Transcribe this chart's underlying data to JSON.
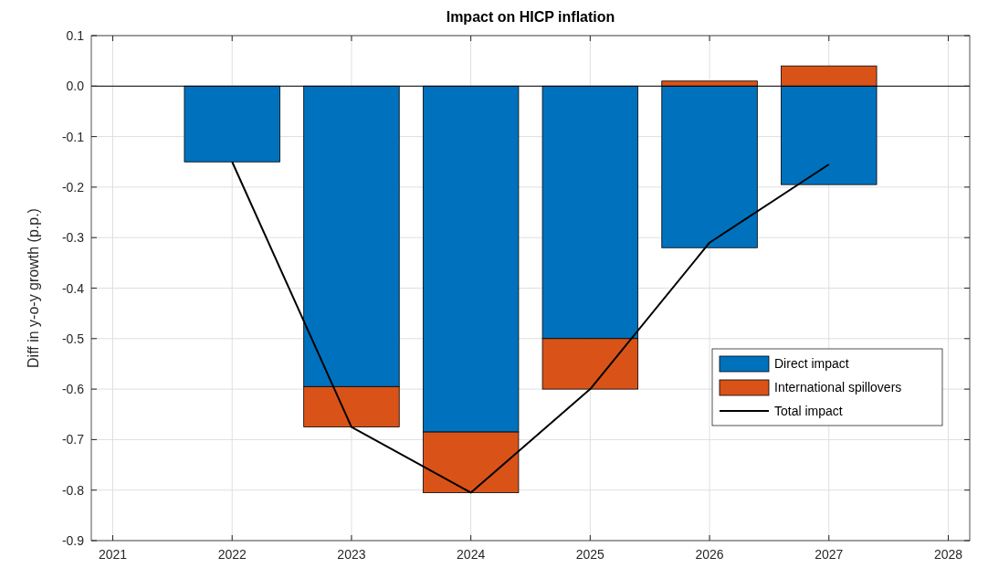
{
  "chart_data": {
    "type": "bar",
    "title": "Impact on HICP inflation",
    "ylabel": "Diff in y-o-y growth (p.p.)",
    "x": [
      2022,
      2023,
      2024,
      2025,
      2026,
      2027
    ],
    "stacked": true,
    "series": [
      {
        "name": "Direct impact",
        "color": "#0072bd",
        "values": [
          -0.15,
          -0.595,
          -0.685,
          -0.5,
          -0.32,
          -0.195
        ]
      },
      {
        "name": "International spillovers",
        "color": "#d95319",
        "values": [
          0,
          -0.08,
          -0.12,
          -0.1,
          0.01,
          0.04
        ]
      },
      {
        "name": "Total impact",
        "type": "line",
        "color": "#000000",
        "values": [
          -0.15,
          -0.675,
          -0.805,
          -0.6,
          -0.31,
          -0.155
        ]
      }
    ],
    "xlim": [
      2020.82,
      2028.18
    ],
    "xticks": [
      2021,
      2022,
      2023,
      2024,
      2025,
      2026,
      2027,
      2028
    ],
    "ylim": [
      -0.9,
      0.1
    ],
    "yticks": [
      -0.9,
      -0.8,
      -0.7,
      -0.6,
      -0.5,
      -0.4,
      -0.3,
      -0.2,
      -0.1,
      {
        "value": 0,
        "label": "0.0"
      },
      0.1
    ],
    "ref_lines": [
      {
        "axis": "y",
        "value": 0,
        "color": "#000000"
      }
    ],
    "grid": true,
    "legend": "right"
  }
}
